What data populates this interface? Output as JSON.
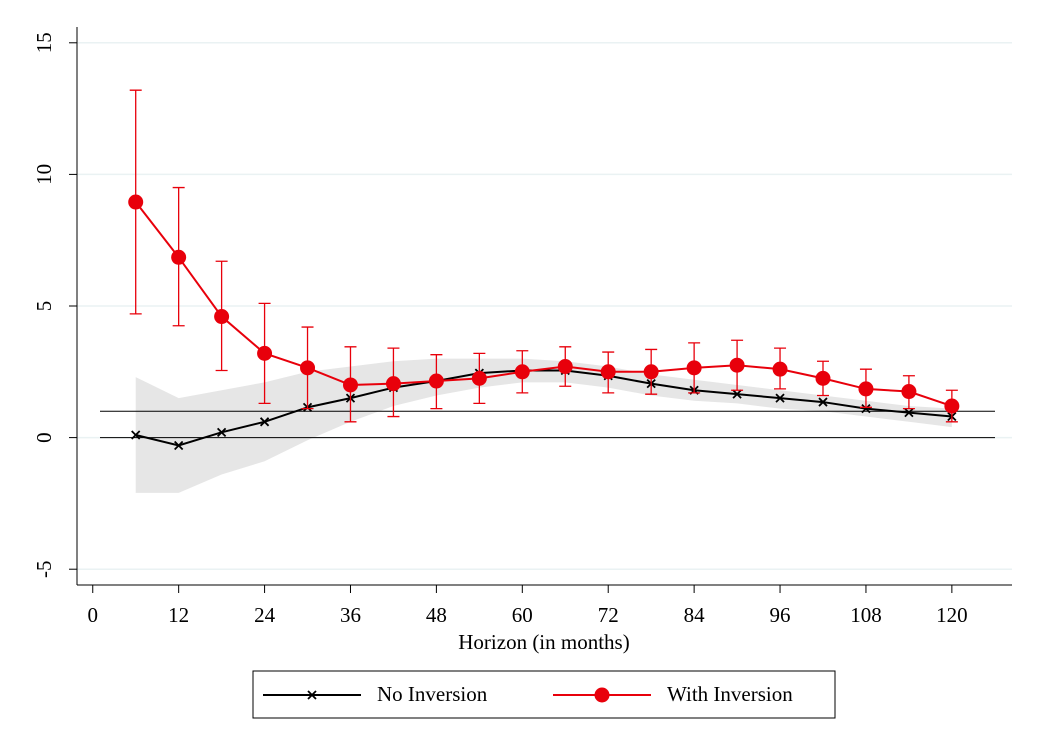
{
  "chart_data": {
    "type": "line",
    "x_label": "Horizon (in months)",
    "x": [
      6,
      12,
      18,
      24,
      30,
      36,
      42,
      48,
      54,
      60,
      66,
      72,
      78,
      84,
      90,
      96,
      102,
      108,
      114,
      120
    ],
    "series": [
      {
        "name": "No Inversion",
        "color": "#000000",
        "marker": "x",
        "ci": "band",
        "band_color": "#e6e6e6",
        "values": [
          0.1,
          -0.3,
          0.2,
          0.6,
          1.15,
          1.5,
          1.9,
          2.15,
          2.45,
          2.55,
          2.55,
          2.35,
          2.05,
          1.8,
          1.65,
          1.5,
          1.35,
          1.1,
          0.95,
          0.8
        ],
        "lower": [
          -2.1,
          -2.1,
          -1.4,
          -0.9,
          -0.1,
          0.6,
          1.2,
          1.6,
          1.9,
          2.1,
          2.1,
          1.9,
          1.6,
          1.4,
          1.3,
          1.1,
          1.0,
          0.8,
          0.6,
          0.4
        ],
        "upper": [
          2.3,
          1.5,
          1.8,
          2.1,
          2.5,
          2.7,
          2.9,
          3.0,
          3.0,
          3.0,
          2.9,
          2.7,
          2.4,
          2.2,
          2.0,
          1.8,
          1.6,
          1.4,
          1.2,
          1.1
        ]
      },
      {
        "name": "With Inversion",
        "color": "#e8000b",
        "marker": "circle",
        "ci": "bars",
        "values": [
          8.95,
          6.85,
          4.6,
          3.2,
          2.65,
          2.0,
          2.05,
          2.15,
          2.25,
          2.5,
          2.7,
          2.5,
          2.5,
          2.65,
          2.75,
          2.6,
          2.25,
          1.85,
          1.75,
          1.2
        ],
        "lower": [
          4.7,
          4.25,
          2.55,
          1.3,
          1.1,
          0.6,
          0.8,
          1.1,
          1.3,
          1.7,
          1.95,
          1.7,
          1.65,
          1.7,
          1.8,
          1.85,
          1.6,
          1.15,
          1.1,
          0.6
        ],
        "upper": [
          13.2,
          9.5,
          6.7,
          5.1,
          4.2,
          3.45,
          3.4,
          3.15,
          3.2,
          3.3,
          3.45,
          3.25,
          3.35,
          3.6,
          3.7,
          3.4,
          2.9,
          2.6,
          2.35,
          1.8
        ]
      }
    ],
    "hlines": [
      0,
      1
    ],
    "xlim": [
      -2.2,
      128.4
    ],
    "xticks": [
      0,
      12,
      24,
      36,
      48,
      60,
      72,
      84,
      96,
      108,
      120
    ],
    "ylim": [
      -5.6,
      15.6
    ],
    "yticks": [
      -5,
      0,
      5,
      10,
      15
    ],
    "grid": true,
    "legend": "bottom"
  }
}
